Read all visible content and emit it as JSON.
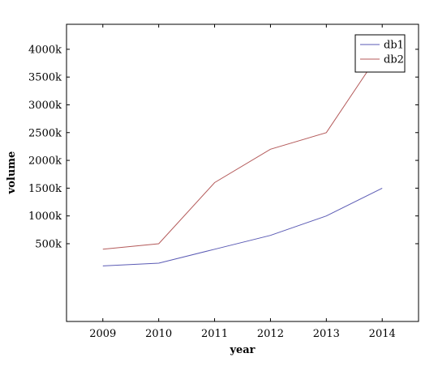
{
  "chart_data": {
    "type": "line",
    "title": "",
    "xlabel": "year",
    "ylabel": "volume",
    "x": [
      2009,
      2010,
      2011,
      2012,
      2013,
      2014
    ],
    "x_tick_labels": [
      "2009",
      "2010",
      "2011",
      "2012",
      "2013",
      "2014"
    ],
    "xlim": [
      2008.35,
      2014.65
    ],
    "ylim": [
      -900,
      4450
    ],
    "y_ticks": [
      500,
      1000,
      1500,
      2000,
      2500,
      3000,
      3500,
      4000
    ],
    "y_tick_labels": [
      "500k",
      "1000k",
      "1500k",
      "2000k",
      "2500k",
      "3000k",
      "3500k",
      "4000k"
    ],
    "y_units": "thousands",
    "grid": false,
    "legend_position": "top-right",
    "series": [
      {
        "name": "db1",
        "color": "#5a5ab4",
        "values": [
          100,
          150,
          400,
          650,
          1000,
          1500
        ]
      },
      {
        "name": "db2",
        "color": "#b45a5a",
        "values": [
          400,
          500,
          1600,
          2200,
          2500,
          4000
        ]
      }
    ]
  }
}
